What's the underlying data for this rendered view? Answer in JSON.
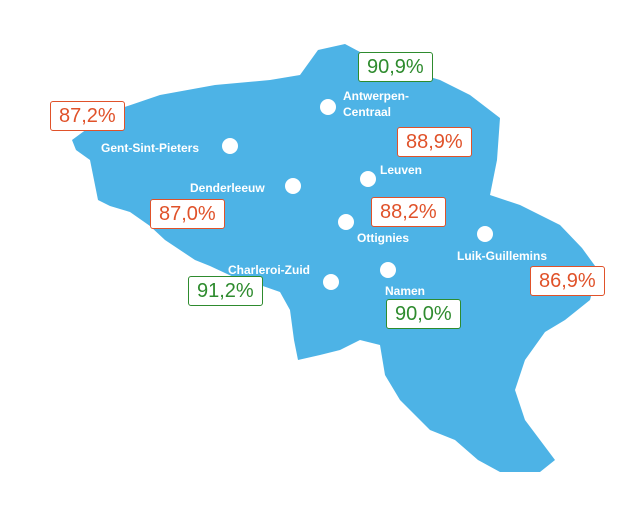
{
  "stations": [
    {
      "name": "Antwerpen-Centraal",
      "value": "90,9%",
      "color": "#2e8b2e"
    },
    {
      "name": "Gent-Sint-Pieters",
      "value": "87,2%",
      "color": "#e0522a"
    },
    {
      "name": "Leuven",
      "value": "88,9%",
      "color": "#e0522a"
    },
    {
      "name": "Denderleeuw",
      "value": "87,0%",
      "color": "#e0522a"
    },
    {
      "name": "Ottignies",
      "value": "88,2%",
      "color": "#e0522a"
    },
    {
      "name": "Charleroi-Zuid",
      "value": "91,2%",
      "color": "#2e8b2e"
    },
    {
      "name": "Namen",
      "value": "90,0%",
      "color": "#2e8b2e"
    },
    {
      "name": "Luik-Guillemins",
      "value": "86,9%",
      "color": "#e0522a"
    }
  ]
}
